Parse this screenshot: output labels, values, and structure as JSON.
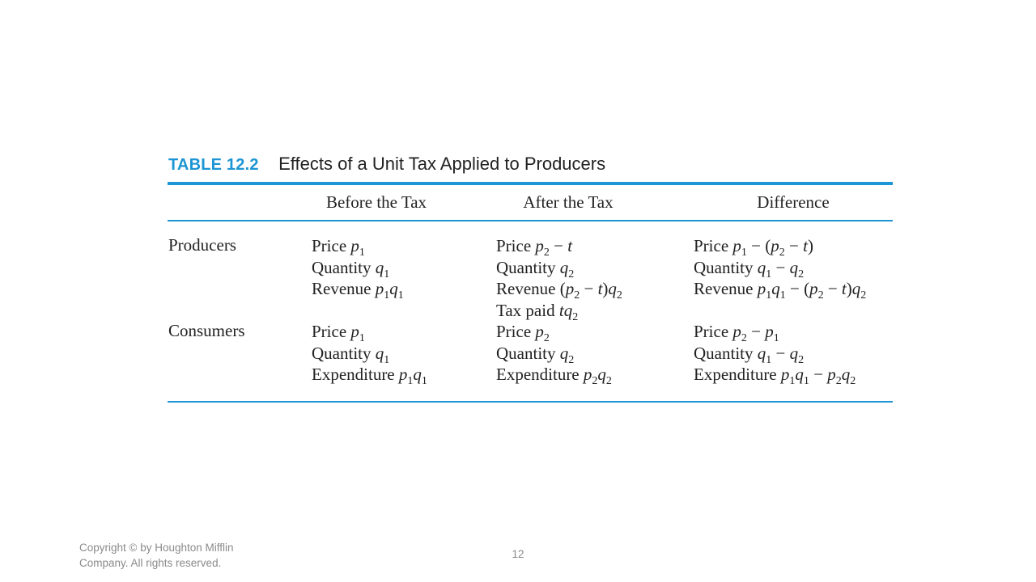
{
  "table": {
    "number": "TABLE 12.2",
    "title": "Effects of a Unit Tax Applied to Producers",
    "columns": [
      "Before the Tax",
      "After the Tax",
      "Difference"
    ],
    "rows": [
      {
        "label": "Producers",
        "before": [
          "Price p1",
          "Quantity q1",
          "Revenue p1q1"
        ],
        "after": [
          "Price p2 − t",
          "Quantity q2",
          "Revenue (p2 − t)q2",
          "Tax paid tq2"
        ],
        "difference": [
          "Price p1 − (p2 − t)",
          "Quantity q1 − q2",
          "Revenue p1q1 − (p2 − t)q2"
        ]
      },
      {
        "label": "Consumers",
        "before": [
          "Price p1",
          "Quantity q1",
          "Expenditure p1q1"
        ],
        "after": [
          "Price p2",
          "Quantity q2",
          "Expenditure p2q2"
        ],
        "difference": [
          "Price p2 − p1",
          "Quantity q1 − q2",
          "Expenditure p1q1 − p2q2"
        ]
      }
    ]
  },
  "footer": {
    "copyright": "Copyright © by Houghton Mifflin Company. All rights reserved.",
    "page_number": "12"
  },
  "colors": {
    "accent": "#1b95d3",
    "text": "#222222",
    "footer_text": "#8a8a8a"
  }
}
